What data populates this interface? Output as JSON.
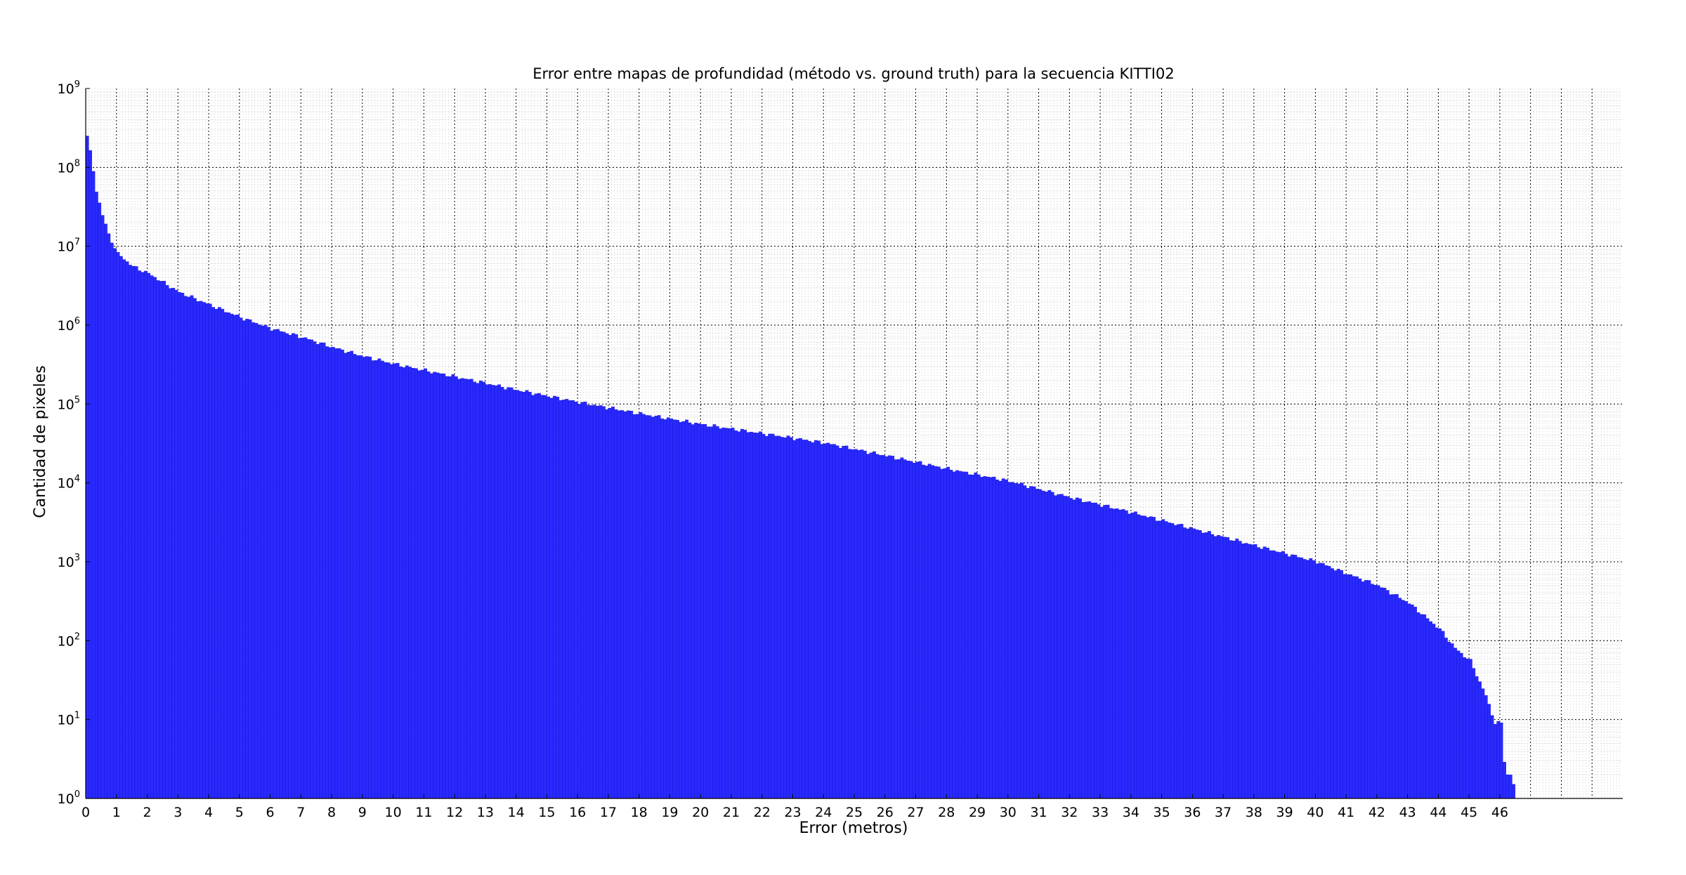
{
  "chart_data": {
    "type": "bar",
    "title": "Error entre mapas de profundidad (método vs. ground truth) para la secuencia KITTI02",
    "xlabel": "Error (metros)",
    "ylabel": "Cantidad de pixeles",
    "y_scale": "log",
    "ylim": [
      1,
      1000000000
    ],
    "xlim": [
      0,
      50
    ],
    "x_ticks": [
      "0",
      "1",
      "2",
      "3",
      "4",
      "5",
      "6",
      "7",
      "8",
      "9",
      "10",
      "11",
      "12",
      "13",
      "14",
      "15",
      "16",
      "17",
      "18",
      "19",
      "20",
      "21",
      "22",
      "23",
      "24",
      "25",
      "26",
      "27",
      "28",
      "29",
      "30",
      "31",
      "32",
      "33",
      "34",
      "35",
      "36",
      "37",
      "38",
      "39",
      "40",
      "41",
      "42",
      "43",
      "44",
      "45",
      "46"
    ],
    "y_ticks": [
      {
        "base": "10",
        "exp": "0"
      },
      {
        "base": "10",
        "exp": "1"
      },
      {
        "base": "10",
        "exp": "2"
      },
      {
        "base": "10",
        "exp": "3"
      },
      {
        "base": "10",
        "exp": "4"
      },
      {
        "base": "10",
        "exp": "5"
      },
      {
        "base": "10",
        "exp": "6"
      },
      {
        "base": "10",
        "exp": "7"
      },
      {
        "base": "10",
        "exp": "8"
      },
      {
        "base": "10",
        "exp": "9"
      }
    ],
    "grid": true,
    "bar_color": "#2a2aff",
    "bin_width": 0.1,
    "bins_start": 0,
    "curve_anchors": {
      "x": [
        0.0,
        0.1,
        0.2,
        0.3,
        0.5,
        0.7,
        1.0,
        1.5,
        2.0,
        3.0,
        4.0,
        5.0,
        6.0,
        7.0,
        8.0,
        9.0,
        10.0,
        12.0,
        14.0,
        16.0,
        18.0,
        20.0,
        22.0,
        24.0,
        26.0,
        28.0,
        30.0,
        32.0,
        34.0,
        36.0,
        38.0,
        40.0,
        41.0,
        42.0,
        43.0,
        44.0,
        44.5,
        45.0,
        45.5,
        45.8,
        46.0,
        46.1,
        46.2,
        46.3,
        46.4
      ],
      "y": [
        250000000,
        155000000,
        90000000,
        50000000,
        25000000,
        14000000,
        8000000,
        5500000,
        4500000,
        2600000,
        1800000,
        1250000,
        900000,
        700000,
        520000,
        400000,
        320000,
        220000,
        150000,
        105000,
        75000,
        55000,
        42000,
        32000,
        22000,
        15000,
        10500,
        6500,
        4200,
        2600,
        1600,
        1000,
        700,
        500,
        300,
        140,
        80,
        55,
        20,
        9,
        9,
        3,
        2,
        2,
        1.5
      ]
    }
  }
}
